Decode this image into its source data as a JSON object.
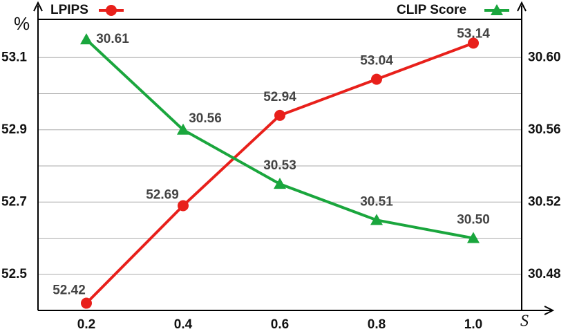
{
  "chart_data": {
    "type": "line",
    "y_label": "%",
    "x_label": "S",
    "x": [
      0.2,
      0.4,
      0.6,
      0.8,
      1.0
    ],
    "xlim": [
      0.1,
      1.1
    ],
    "xticks": [
      0.2,
      0.4,
      0.6,
      0.8,
      {
        "value": 1.0,
        "label": "1.0"
      }
    ],
    "ylim": [
      52.4,
      53.2
    ],
    "yticks": [
      52.5,
      52.7,
      52.9,
      53.1
    ],
    "y2lim": [
      30.46,
      30.62
    ],
    "y2ticks": [
      {
        "value": 30.48,
        "label": "30.48"
      },
      {
        "value": 30.52,
        "label": "30.52"
      },
      {
        "value": 30.56,
        "label": "30.56"
      },
      {
        "value": 30.6,
        "label": "30.60"
      }
    ],
    "grid": true,
    "series": [
      {
        "name": "LPIPS",
        "color": "#e8201b",
        "marker": "circle",
        "values": [
          52.42,
          52.69,
          52.94,
          53.04,
          53.14
        ]
      },
      {
        "name": "CLIP Score",
        "color": "#1aa63d",
        "marker": "triangle",
        "axis": "y2",
        "values": [
          30.61,
          30.56,
          30.53,
          30.51,
          30.5
        ],
        "value_labels": [
          "30.61",
          "30.56",
          "30.53",
          "30.51",
          "30.50"
        ]
      }
    ]
  }
}
